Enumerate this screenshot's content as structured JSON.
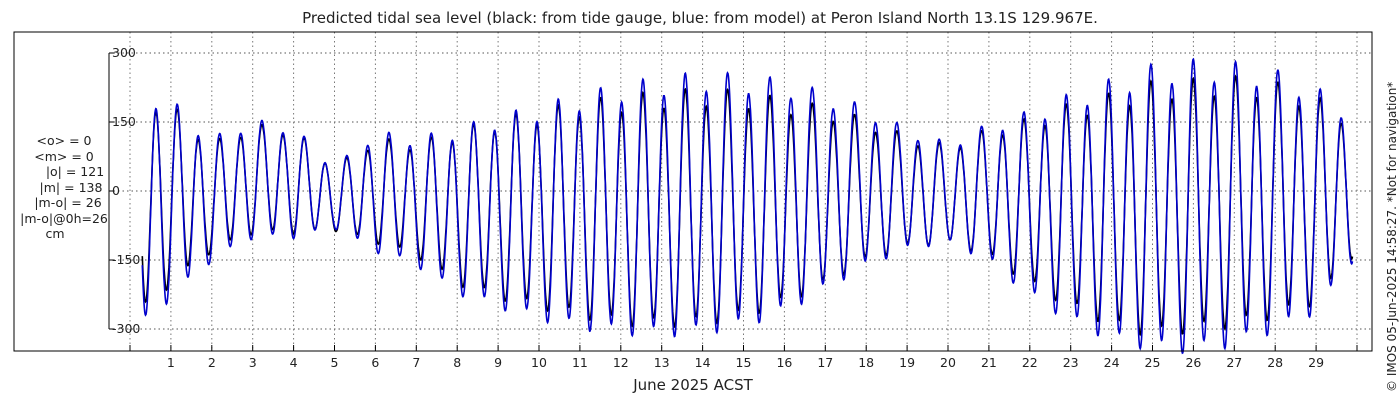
{
  "chart_data": {
    "type": "line",
    "title": "Predicted tidal sea level (black: from tide gauge, blue: from model) at Peron Island North 13.1S 129.967E.",
    "xlabel": "June 2025 ACST",
    "ylabel": "",
    "x_ticks": [
      "1",
      "2",
      "3",
      "4",
      "5",
      "6",
      "7",
      "8",
      "9",
      "10",
      "11",
      "12",
      "13",
      "14",
      "15",
      "16",
      "17",
      "18",
      "19",
      "20",
      "21",
      "22",
      "23",
      "24",
      "25",
      "26",
      "27",
      "28",
      "29"
    ],
    "x_range_days": [
      0,
      30
    ],
    "y_ticks": [
      300,
      150,
      0,
      -150,
      -300
    ],
    "ylim": [
      -340,
      340
    ],
    "grid": true,
    "series": [
      {
        "name": "from tide gauge",
        "color": "#000000"
      },
      {
        "name": "from model",
        "color": "#0000cc"
      }
    ],
    "envelope_description_values": {
      "day": [
        0.3,
        1,
        2,
        3,
        4,
        5,
        6,
        7,
        8,
        9,
        10,
        11,
        12,
        13,
        14,
        15,
        16,
        17,
        18,
        19,
        20,
        21,
        22,
        23,
        24,
        25,
        26,
        27,
        28,
        29,
        29.9
      ],
      "gauge_high": [
        205,
        180,
        100,
        140,
        130,
        50,
        110,
        100,
        125,
        150,
        165,
        185,
        195,
        205,
        210,
        205,
        190,
        175,
        150,
        115,
        95,
        130,
        150,
        180,
        200,
        225,
        230,
        235,
        225,
        195,
        150
      ],
      "gauge_low": [
        -260,
        -200,
        -130,
        -90,
        -90,
        -85,
        -110,
        -140,
        -200,
        -230,
        -250,
        -270,
        -285,
        -290,
        -285,
        -270,
        -240,
        -200,
        -150,
        -120,
        -110,
        -140,
        -200,
        -250,
        -290,
        -310,
        -300,
        -290,
        -270,
        -240,
        -140
      ],
      "model_high": [
        215,
        190,
        110,
        150,
        135,
        50,
        125,
        110,
        130,
        155,
        175,
        200,
        220,
        235,
        245,
        240,
        230,
        205,
        175,
        130,
        100,
        140,
        165,
        200,
        230,
        260,
        270,
        265,
        250,
        215,
        160
      ],
      "model_low": [
        -290,
        -230,
        -150,
        -100,
        -100,
        -80,
        -130,
        -160,
        -220,
        -250,
        -275,
        -295,
        -305,
        -310,
        -305,
        -290,
        -260,
        -210,
        -160,
        -125,
        -110,
        -150,
        -225,
        -280,
        -320,
        -340,
        -345,
        -330,
        -300,
        -260,
        -150
      ]
    }
  },
  "stats": {
    "mean_o": "<o> = 0",
    "mean_m": "<m> = 0",
    "abs_o": "|o| = 121",
    "abs_m": "|m| = 138",
    "abs_diff": "|m-o| = 26",
    "abs_diff_0h": "|m-o|@0h=26",
    "unit": "cm"
  },
  "credit": "© IMOS 05-Jun-2025 14:58:27. *Not for navigation*"
}
